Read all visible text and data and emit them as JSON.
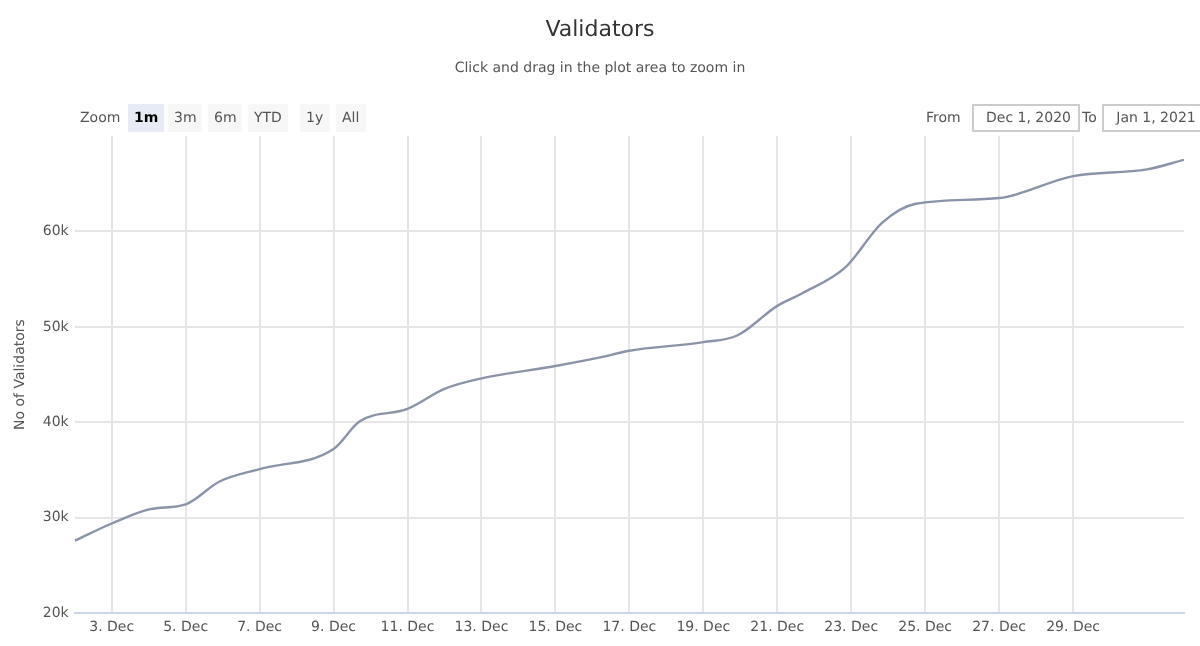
{
  "chart_data": {
    "type": "line",
    "title": "Validators",
    "subtitle": "Click and drag in the plot area to zoom in",
    "ylabel": "No of Validators",
    "annotations": [
      "Zoom",
      "1m",
      "3m",
      "6m",
      "YTD",
      "1y",
      "All",
      "From",
      "Dec 1, 2020",
      "To",
      "Jan 1, 2021"
    ],
    "x": [
      "2020-12-02",
      "2020-12-03",
      "2020-12-04T01:00",
      "2020-12-05",
      "2020-12-05T22:00",
      "2020-12-07",
      "2020-12-09",
      "2020-12-09T17:00",
      "2020-12-11",
      "2020-12-12",
      "2020-12-13",
      "2020-12-15",
      "2020-12-16T05:00",
      "2020-12-17",
      "2020-12-19",
      "2020-12-19T22:00",
      "2020-12-21",
      "2020-12-21T16:00",
      "2020-12-22T20:00",
      "2020-12-23T20:00",
      "2020-12-24T18:00",
      "2020-12-27",
      "2020-12-29",
      "2020-12-31",
      "2021-01-01"
    ],
    "series": [
      {
        "color": "#8a93a8",
        "values": [
          27600,
          29400,
          30900,
          31400,
          33800,
          35100,
          37200,
          40100,
          41400,
          43500,
          44600,
          45900,
          46800,
          47500,
          48400,
          49100,
          52200,
          53500,
          56200,
          60900,
          62900,
          63500,
          65800,
          66500,
          67500
        ]
      }
    ],
    "xlim": [
      "2020-12-02",
      "2021-01-01"
    ],
    "xticks": [
      {
        "value": "2020-12-03",
        "label": "3. Dec"
      },
      {
        "value": "2020-12-05",
        "label": "5. Dec"
      },
      {
        "value": "2020-12-07",
        "label": "7. Dec"
      },
      {
        "value": "2020-12-09",
        "label": "9. Dec"
      },
      {
        "value": "2020-12-11",
        "label": "11. Dec"
      },
      {
        "value": "2020-12-13",
        "label": "13. Dec"
      },
      {
        "value": "2020-12-15",
        "label": "15. Dec"
      },
      {
        "value": "2020-12-17",
        "label": "17. Dec"
      },
      {
        "value": "2020-12-19",
        "label": "19. Dec"
      },
      {
        "value": "2020-12-21",
        "label": "21. Dec"
      },
      {
        "value": "2020-12-23",
        "label": "23. Dec"
      },
      {
        "value": "2020-12-25",
        "label": "25. Dec"
      },
      {
        "value": "2020-12-27",
        "label": "27. Dec"
      },
      {
        "value": "2020-12-29",
        "label": "29. Dec"
      }
    ],
    "ylim": [
      20000,
      70000
    ],
    "yticks": [
      {
        "value": 20000,
        "label": "20k"
      },
      {
        "value": 30000,
        "label": "30k"
      },
      {
        "value": 40000,
        "label": "40k"
      },
      {
        "value": 50000,
        "label": "50k"
      },
      {
        "value": 60000,
        "label": "60k"
      }
    ],
    "grid": true,
    "marker": "none",
    "line_style": "solid"
  }
}
